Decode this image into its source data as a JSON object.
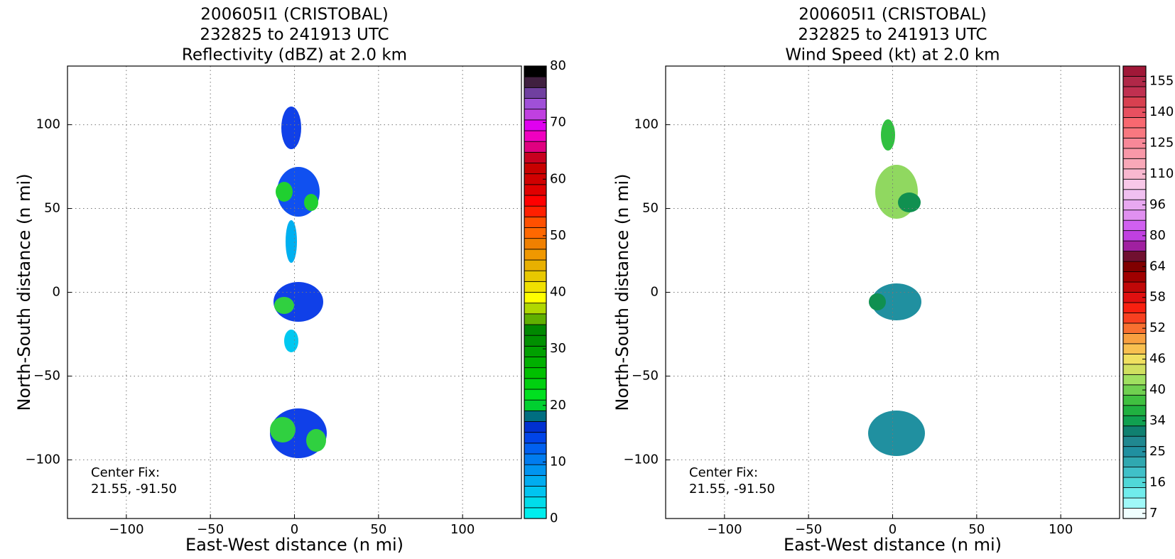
{
  "chart_data": [
    {
      "type": "heatmap",
      "title": [
        "200605I1 (CRISTOBAL)",
        "232825 to 241913 UTC",
        "Reflectivity (dBZ) at 2.0 km"
      ],
      "x_label": "East-West distance (n mi)",
      "y_label": "North-South distance (n mi)",
      "xlim": [
        -135,
        135
      ],
      "ylim": [
        -135,
        135
      ],
      "xticks": [
        {
          "value": -100,
          "label": "−100"
        },
        {
          "value": -50,
          "label": "−50"
        },
        0,
        50,
        100
      ],
      "yticks": [
        {
          "value": -100,
          "label": "−100"
        },
        {
          "value": -50,
          "label": "−50"
        },
        0,
        50,
        100
      ],
      "grid": true,
      "annotation": [
        "Center Fix:",
        "21.55, -91.50"
      ],
      "colorbar": {
        "lim": [
          0,
          80
        ],
        "ticks": [
          0,
          10,
          20,
          30,
          40,
          50,
          60,
          70,
          80
        ],
        "colors": [
          "#00eeee",
          "#00dcea",
          "#00c4f0",
          "#00acf0",
          "#0094f0",
          "#007cf0",
          "#0060f0",
          "#0044e8",
          "#0030d0",
          "#006e80",
          "#00d030",
          "#00e020",
          "#00d010",
          "#00c000",
          "#00b000",
          "#00a000",
          "#009000",
          "#008800",
          "#60b000",
          "#b0d800",
          "#ffff00",
          "#f0e000",
          "#e8c800",
          "#e8b000",
          "#f09800",
          "#f08000",
          "#ff6800",
          "#ff5000",
          "#ff2000",
          "#ff0000",
          "#e00000",
          "#d00000",
          "#c80000",
          "#c80020",
          "#e00080",
          "#f000c0",
          "#e000f0",
          "#c040e0",
          "#a050d8",
          "#7040a0",
          "#402040",
          "#000000"
        ]
      }
    },
    {
      "type": "heatmap",
      "title": [
        "200605I1 (CRISTOBAL)",
        "232825 to 241913 UTC",
        "Wind Speed (kt) at 2.0 km"
      ],
      "x_label": "East-West distance (n mi)",
      "y_label": "North-South distance (n mi)",
      "xlim": [
        -135,
        135
      ],
      "ylim": [
        -135,
        135
      ],
      "xticks": [
        {
          "value": -100,
          "label": "−100"
        },
        {
          "value": -50,
          "label": "−50"
        },
        0,
        50,
        100
      ],
      "yticks": [
        {
          "value": -100,
          "label": "−100"
        },
        {
          "value": -50,
          "label": "−50"
        },
        0,
        50,
        100
      ],
      "grid": true,
      "annotation": [
        "Center Fix:",
        "21.55, -91.50"
      ],
      "colorbar": {
        "ticks": [
          7,
          16,
          25,
          34,
          40,
          46,
          52,
          58,
          64,
          80,
          96,
          110,
          125,
          140,
          155
        ],
        "colors": [
          "#f0ffff",
          "#a0f8f8",
          "#70ecec",
          "#50d8d8",
          "#40c0c8",
          "#30a8b0",
          "#2090a0",
          "#208890",
          "#108070",
          "#10a050",
          "#20b040",
          "#40c040",
          "#70d050",
          "#a0e060",
          "#d0e060",
          "#f0e060",
          "#f8c050",
          "#f8a040",
          "#f87030",
          "#f84020",
          "#f82010",
          "#e01010",
          "#c00808",
          "#a00000",
          "#800000",
          "#701030",
          "#a020a0",
          "#c040e0",
          "#d060f0",
          "#e090f0",
          "#e8a8f0",
          "#f0c0f0",
          "#f8c8e8",
          "#f8b8d0",
          "#f8a8b8",
          "#f898a8",
          "#f88898",
          "#f87880",
          "#f86870",
          "#e85060",
          "#d84050",
          "#c03050",
          "#b02848",
          "#a01838"
        ]
      }
    }
  ]
}
